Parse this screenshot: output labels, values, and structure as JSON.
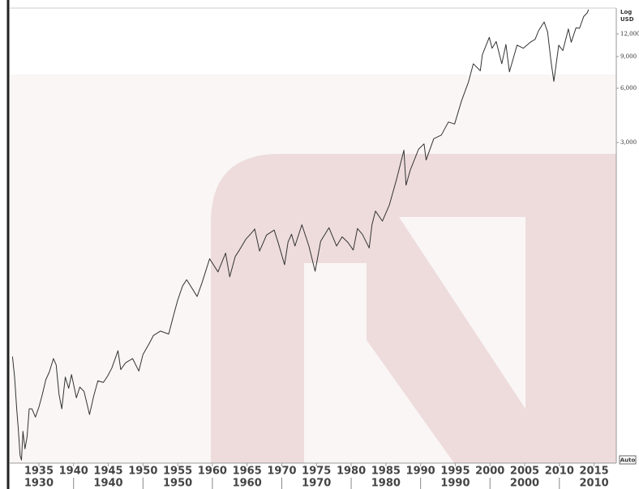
{
  "chart_data": {
    "type": "line",
    "log_scale": true,
    "y_axis_label_lines": [
      "Log",
      "USD"
    ],
    "button": "Auto",
    "xlim": [
      1930.8,
      2018.2
    ],
    "ylim": [
      50,
      16700
    ],
    "xticks": [
      1935,
      1940,
      1945,
      1950,
      1955,
      1960,
      1965,
      1970,
      1975,
      1980,
      1985,
      1990,
      1995,
      2000,
      2005,
      2010,
      2015
    ],
    "xticks_decades": [
      1930,
      1940,
      1950,
      1960,
      1970,
      1980,
      1990,
      2000,
      2010
    ],
    "yticks": [
      {
        "value": 3000,
        "label": "3,000"
      },
      {
        "value": 6000,
        "label": "6,000"
      },
      {
        "value": 9000,
        "label": "9,000"
      },
      {
        "value": 12000,
        "label": "12,000"
      }
    ],
    "series": [
      {
        "color": "#333333",
        "x": [
          1931.2,
          1931.5,
          1931.8,
          1932.0,
          1932.3,
          1932.5,
          1932.7,
          1933.0,
          1933.3,
          1933.6,
          1934.0,
          1934.5,
          1935.0,
          1935.5,
          1936.0,
          1936.5,
          1937.1,
          1937.5,
          1937.9,
          1938.3,
          1938.8,
          1939.3,
          1939.7,
          1940.4,
          1940.9,
          1941.5,
          1942.3,
          1942.9,
          1943.5,
          1944.3,
          1944.9,
          1945.5,
          1946.4,
          1946.8,
          1947.5,
          1948.5,
          1949.4,
          1950.0,
          1950.9,
          1951.5,
          1952.5,
          1953.7,
          1954.5,
          1955.0,
          1955.7,
          1956.3,
          1957.8,
          1958.5,
          1959.6,
          1960.8,
          1961.9,
          1962.5,
          1963.3,
          1963.9,
          1964.8,
          1965.9,
          1966.1,
          1966.8,
          1967.8,
          1968.9,
          1969.5,
          1970.4,
          1970.9,
          1971.4,
          1971.9,
          1972.9,
          1973.9,
          1974.8,
          1975.6,
          1976.8,
          1977.9,
          1978.7,
          1979.5,
          1980.3,
          1980.9,
          1981.6,
          1982.6,
          1983.0,
          1983.5,
          1984.5,
          1985.5,
          1986.5,
          1987.6,
          1987.9,
          1988.5,
          1989.7,
          1990.5,
          1990.8,
          1991.9,
          1993.0,
          1994.0,
          1994.9,
          1995.9,
          1996.9,
          1997.6,
          1998.6,
          1998.9,
          1999.9,
          2000.3,
          2000.9,
          2001.7,
          2002.3,
          2002.8,
          2003.9,
          2004.8,
          2005.8,
          2006.5,
          2007.0,
          2007.8,
          2008.3,
          2008.8,
          2009.2,
          2009.9,
          2010.5,
          2011.3,
          2011.7,
          2012.4,
          2012.9,
          2013.5,
          2014.0,
          2014.2
        ],
        "values": [
          195,
          150,
          100,
          80,
          55,
          52,
          75,
          60,
          70,
          100,
          100,
          90,
          102,
          120,
          145,
          160,
          190,
          175,
          120,
          100,
          150,
          130,
          155,
          115,
          132,
          125,
          93,
          118,
          143,
          140,
          152,
          168,
          210,
          165,
          180,
          190,
          162,
          200,
          230,
          255,
          270,
          260,
          340,
          400,
          480,
          520,
          420,
          500,
          680,
          575,
          730,
          540,
          700,
          760,
          870,
          970,
          995,
          750,
          920,
          980,
          830,
          630,
          840,
          930,
          800,
          1050,
          800,
          580,
          850,
          1010,
          800,
          900,
          840,
          760,
          1000,
          930,
          780,
          1050,
          1250,
          1100,
          1350,
          1850,
          2720,
          1740,
          2100,
          2750,
          2950,
          2400,
          3150,
          3300,
          3900,
          3800,
          5100,
          6500,
          8200,
          7500,
          9200,
          11500,
          10000,
          10900,
          8200,
          10500,
          7400,
          10400,
          10000,
          10800,
          11200,
          12500,
          14000,
          12300,
          8400,
          6550,
          10400,
          9700,
          12800,
          10800,
          13000,
          12900,
          15000,
          15700,
          16400
        ]
      }
    ]
  }
}
